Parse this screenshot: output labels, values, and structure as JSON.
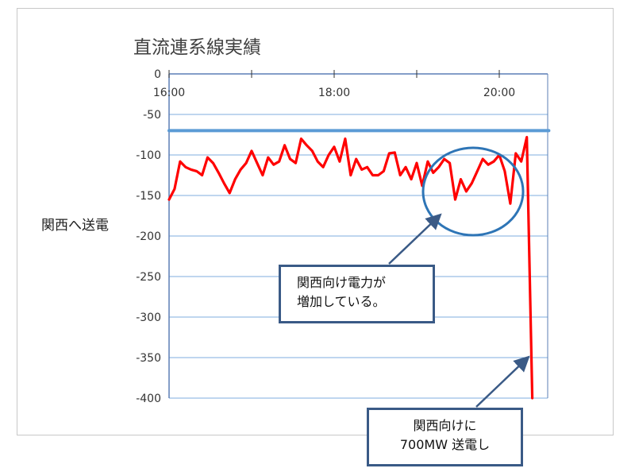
{
  "chart_data": {
    "type": "line",
    "title": "直流連系線実績",
    "ylabel": "関西へ送電",
    "xlabel": "",
    "x_ticks": [
      "16:00",
      "18:00",
      "20:00"
    ],
    "y_ticks": [
      "0",
      "-50",
      "-100",
      "-150",
      "-200",
      "-250",
      "-300",
      "-350",
      "-400"
    ],
    "ylim": [
      -400,
      0
    ],
    "xlim": [
      "16:00",
      "20:36"
    ],
    "grid": "horizontal",
    "x_axis_position": "top",
    "series": [
      {
        "color": "#ff0000",
        "points": [
          [
            "16:00",
            -155
          ],
          [
            "16:04",
            -142
          ],
          [
            "16:08",
            -108
          ],
          [
            "16:12",
            -115
          ],
          [
            "16:16",
            -118
          ],
          [
            "16:20",
            -120
          ],
          [
            "16:24",
            -125
          ],
          [
            "16:28",
            -103
          ],
          [
            "16:32",
            -110
          ],
          [
            "16:36",
            -122
          ],
          [
            "16:40",
            -135
          ],
          [
            "16:44",
            -147
          ],
          [
            "16:48",
            -130
          ],
          [
            "16:52",
            -118
          ],
          [
            "16:56",
            -110
          ],
          [
            "17:00",
            -95
          ],
          [
            "17:04",
            -110
          ],
          [
            "17:08",
            -125
          ],
          [
            "17:12",
            -103
          ],
          [
            "17:16",
            -112
          ],
          [
            "17:20",
            -108
          ],
          [
            "17:24",
            -88
          ],
          [
            "17:28",
            -105
          ],
          [
            "17:32",
            -110
          ],
          [
            "17:36",
            -80
          ],
          [
            "17:40",
            -88
          ],
          [
            "17:44",
            -95
          ],
          [
            "17:48",
            -108
          ],
          [
            "17:52",
            -115
          ],
          [
            "17:56",
            -100
          ],
          [
            "18:00",
            -90
          ],
          [
            "18:04",
            -108
          ],
          [
            "18:08",
            -80
          ],
          [
            "18:12",
            -125
          ],
          [
            "18:16",
            -105
          ],
          [
            "18:20",
            -118
          ],
          [
            "18:24",
            -115
          ],
          [
            "18:28",
            -125
          ],
          [
            "18:32",
            -125
          ],
          [
            "18:36",
            -120
          ],
          [
            "18:40",
            -98
          ],
          [
            "18:44",
            -97
          ],
          [
            "18:48",
            -125
          ],
          [
            "18:52",
            -115
          ],
          [
            "18:56",
            -130
          ],
          [
            "19:00",
            -110
          ],
          [
            "19:04",
            -138
          ],
          [
            "19:08",
            -108
          ],
          [
            "19:12",
            -122
          ],
          [
            "19:16",
            -115
          ],
          [
            "19:20",
            -105
          ],
          [
            "19:24",
            -110
          ],
          [
            "19:28",
            -155
          ],
          [
            "19:32",
            -130
          ],
          [
            "19:36",
            -145
          ],
          [
            "19:40",
            -135
          ],
          [
            "19:44",
            -120
          ],
          [
            "19:48",
            -105
          ],
          [
            "19:52",
            -112
          ],
          [
            "19:56",
            -108
          ],
          [
            "20:00",
            -100
          ],
          [
            "20:04",
            -120
          ],
          [
            "20:08",
            -160
          ],
          [
            "20:12",
            -98
          ],
          [
            "20:16",
            -108
          ],
          [
            "20:20",
            -78
          ],
          [
            "20:24",
            -400
          ]
        ]
      },
      {
        "color": "#5b9bd5",
        "points": [
          [
            "16:00",
            -70
          ],
          [
            "20:36",
            -70
          ]
        ]
      }
    ],
    "annotations": [
      {
        "lines": [
          "関西向け電力が",
          "増加している。"
        ]
      },
      {
        "lines": [
          "関西向けに",
          "700MW 送電し"
        ]
      }
    ]
  },
  "colors": {
    "frame_border": "#c8c8c8",
    "gridline": "#7faedf",
    "axis": "#5b7fb5",
    "callout_border": "#3a5a86",
    "arrow": "#3a5a86",
    "ellipse": "#2e75b6"
  }
}
